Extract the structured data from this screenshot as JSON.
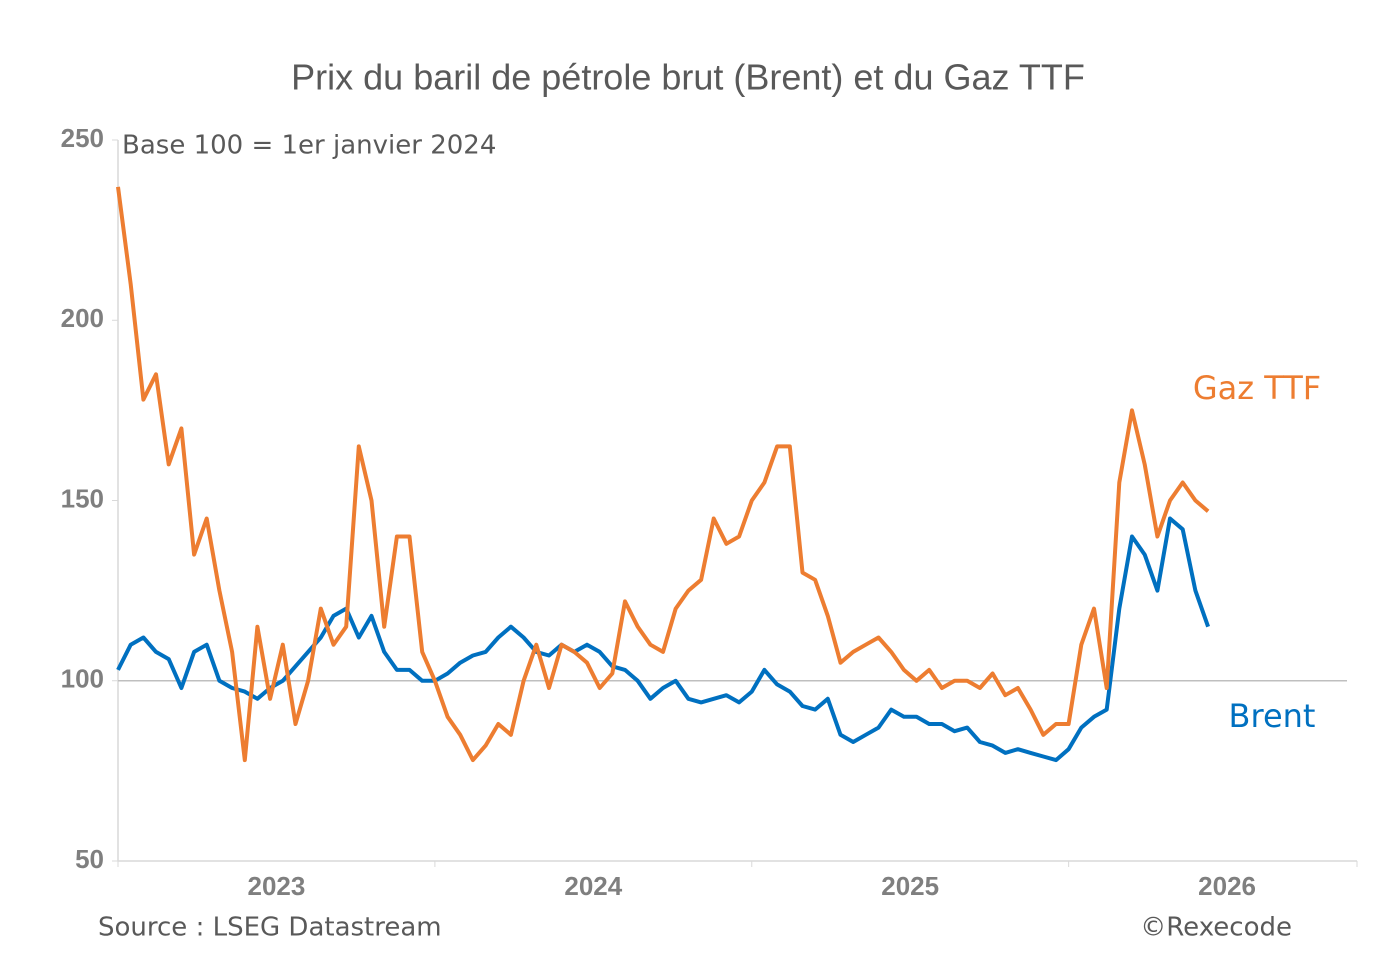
{
  "chart_data": {
    "type": "line",
    "title": "Prix du baril de pétrole brut (Brent) et du Gaz TTF",
    "subtitle": "Base 100 = 1er janvier 2024",
    "source": "Source : LSEG Datastream",
    "credit": "©Rexecode",
    "x": [
      2023.0,
      2023.04,
      2023.08,
      2023.12,
      2023.16,
      2023.2,
      2023.24,
      2023.28,
      2023.32,
      2023.36,
      2023.4,
      2023.44,
      2023.48,
      2023.52,
      2023.56,
      2023.6,
      2023.64,
      2023.68,
      2023.72,
      2023.76,
      2023.8,
      2023.84,
      2023.88,
      2023.92,
      2023.96,
      2024.0,
      2024.04,
      2024.08,
      2024.12,
      2024.16,
      2024.2,
      2024.24,
      2024.28,
      2024.32,
      2024.36,
      2024.4,
      2024.44,
      2024.48,
      2024.52,
      2024.56,
      2024.6,
      2024.64,
      2024.68,
      2024.72,
      2024.76,
      2024.8,
      2024.84,
      2024.88,
      2024.92,
      2024.96,
      2025.0,
      2025.04,
      2025.08,
      2025.12,
      2025.16,
      2025.2,
      2025.24,
      2025.28,
      2025.32,
      2025.36,
      2025.4,
      2025.44,
      2025.48,
      2025.52,
      2025.56,
      2025.6,
      2025.64,
      2025.68,
      2025.72,
      2025.76,
      2025.8,
      2025.84,
      2025.88,
      2025.92,
      2025.96,
      2026.0,
      2026.04,
      2026.08,
      2026.12,
      2026.16,
      2026.2,
      2026.24,
      2026.28,
      2026.32,
      2026.36,
      2026.4,
      2026.44
    ],
    "series": [
      {
        "name": "Gaz TTF",
        "color": "#ed7d31",
        "values": [
          237,
          210,
          178,
          185,
          160,
          170,
          135,
          145,
          125,
          108,
          78,
          115,
          95,
          110,
          88,
          100,
          120,
          110,
          115,
          165,
          150,
          115,
          140,
          140,
          108,
          100,
          90,
          85,
          78,
          82,
          88,
          85,
          100,
          110,
          98,
          110,
          108,
          105,
          98,
          102,
          122,
          115,
          110,
          108,
          120,
          125,
          128,
          145,
          138,
          140,
          150,
          155,
          165,
          165,
          130,
          128,
          118,
          105,
          108,
          110,
          112,
          108,
          103,
          100,
          103,
          98,
          100,
          100,
          98,
          102,
          96,
          98,
          92,
          85,
          88,
          88,
          110,
          120,
          98,
          155,
          175,
          160,
          140,
          150,
          155,
          150,
          147
        ]
      },
      {
        "name": "Brent",
        "color": "#0070c0",
        "values": [
          103,
          110,
          112,
          108,
          106,
          98,
          108,
          110,
          100,
          98,
          97,
          95,
          98,
          100,
          104,
          108,
          112,
          118,
          120,
          112,
          118,
          108,
          103,
          103,
          100,
          100,
          102,
          105,
          107,
          108,
          112,
          115,
          112,
          108,
          107,
          110,
          108,
          110,
          108,
          104,
          103,
          100,
          95,
          98,
          100,
          95,
          94,
          95,
          96,
          94,
          97,
          103,
          99,
          97,
          93,
          92,
          95,
          85,
          83,
          85,
          87,
          92,
          90,
          90,
          88,
          88,
          86,
          87,
          83,
          82,
          80,
          81,
          80,
          79,
          78,
          81,
          87,
          90,
          92,
          120,
          140,
          135,
          125,
          145,
          142,
          125,
          115
        ]
      }
    ],
    "xlim": [
      2023,
      2026.91
    ],
    "xticks": [
      {
        "value": 2023,
        "label": "2023"
      },
      {
        "value": 2024,
        "label": "2024"
      },
      {
        "value": 2025,
        "label": "2025"
      },
      {
        "value": 2026,
        "label": "2026"
      }
    ],
    "ylim": [
      50,
      250
    ],
    "yticks": [
      50,
      100,
      150,
      200,
      250
    ],
    "reference_line": 100
  }
}
